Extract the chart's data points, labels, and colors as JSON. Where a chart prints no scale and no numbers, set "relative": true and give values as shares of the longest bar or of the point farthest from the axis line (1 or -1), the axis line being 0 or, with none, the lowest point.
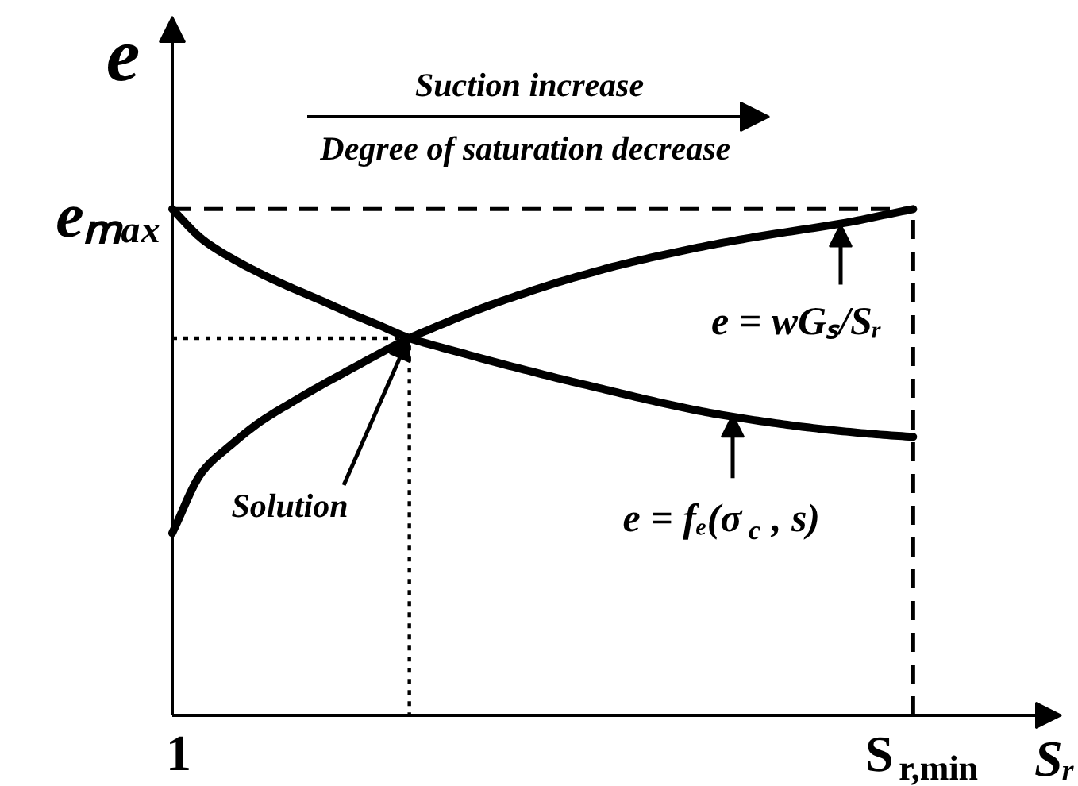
{
  "chart_data": {
    "type": "line",
    "relative": true,
    "xlabel": "Sᵣ",
    "ylabel": "e",
    "line_style": "solid",
    "categories": [
      "1",
      null,
      null,
      null,
      null,
      null,
      null,
      null,
      null,
      null,
      null,
      null,
      null,
      null,
      null,
      null,
      null,
      null,
      null,
      null,
      null,
      null,
      null,
      null,
      null,
      "S$_{r,min}$"
    ],
    "series": [
      {
        "color": "#000000",
        "values": [
          1.0,
          0.941,
          0.903,
          0.872,
          0.845,
          0.82,
          0.794,
          0.77,
          0.745,
          0.728,
          0.712,
          0.696,
          0.681,
          0.666,
          0.652,
          0.638,
          0.624,
          0.611,
          0.599,
          0.589,
          0.58,
          0.572,
          0.565,
          0.559,
          0.554,
          0.55
        ]
      },
      {
        "color": "#000000",
        "values": [
          0.36,
          0.48,
          0.535,
          0.581,
          0.617,
          0.651,
          0.683,
          0.715,
          0.745,
          0.77,
          0.794,
          0.816,
          0.836,
          0.855,
          0.872,
          0.888,
          0.902,
          0.915,
          0.927,
          0.938,
          0.948,
          0.957,
          0.966,
          0.976,
          0.988,
          1.0
        ]
      },
      {
        "type": "step",
        "color": "#000000",
        "line_style": "dotted",
        "values": [
          0.745,
          0.745,
          0.745,
          0.745,
          0.745,
          0.745,
          0.745,
          0.745,
          0,
          null,
          null,
          null,
          null,
          null,
          null,
          null,
          null,
          null,
          null,
          null,
          null,
          null,
          null,
          null,
          null,
          null
        ]
      }
    ],
    "ref_lines": [
      {
        "axis": "y",
        "value": 1,
        "label": "eₘₐₓ",
        "line_style": "dashed",
        "color": "#000000"
      },
      {
        "axis": "x",
        "value": "S$_{r,min}$",
        "line_style": "dashed",
        "color": "#000000"
      }
    ],
    "annotations": [
      "Suction increase",
      "Degree of saturation  decrease",
      "Solution",
      {
        "text": "e = wGₛ/Sᵣ",
        "y": 0.97
      },
      {
        "text": "e = fₑ(σ$_{c}$ , s)",
        "y": 0.594
      }
    ]
  }
}
